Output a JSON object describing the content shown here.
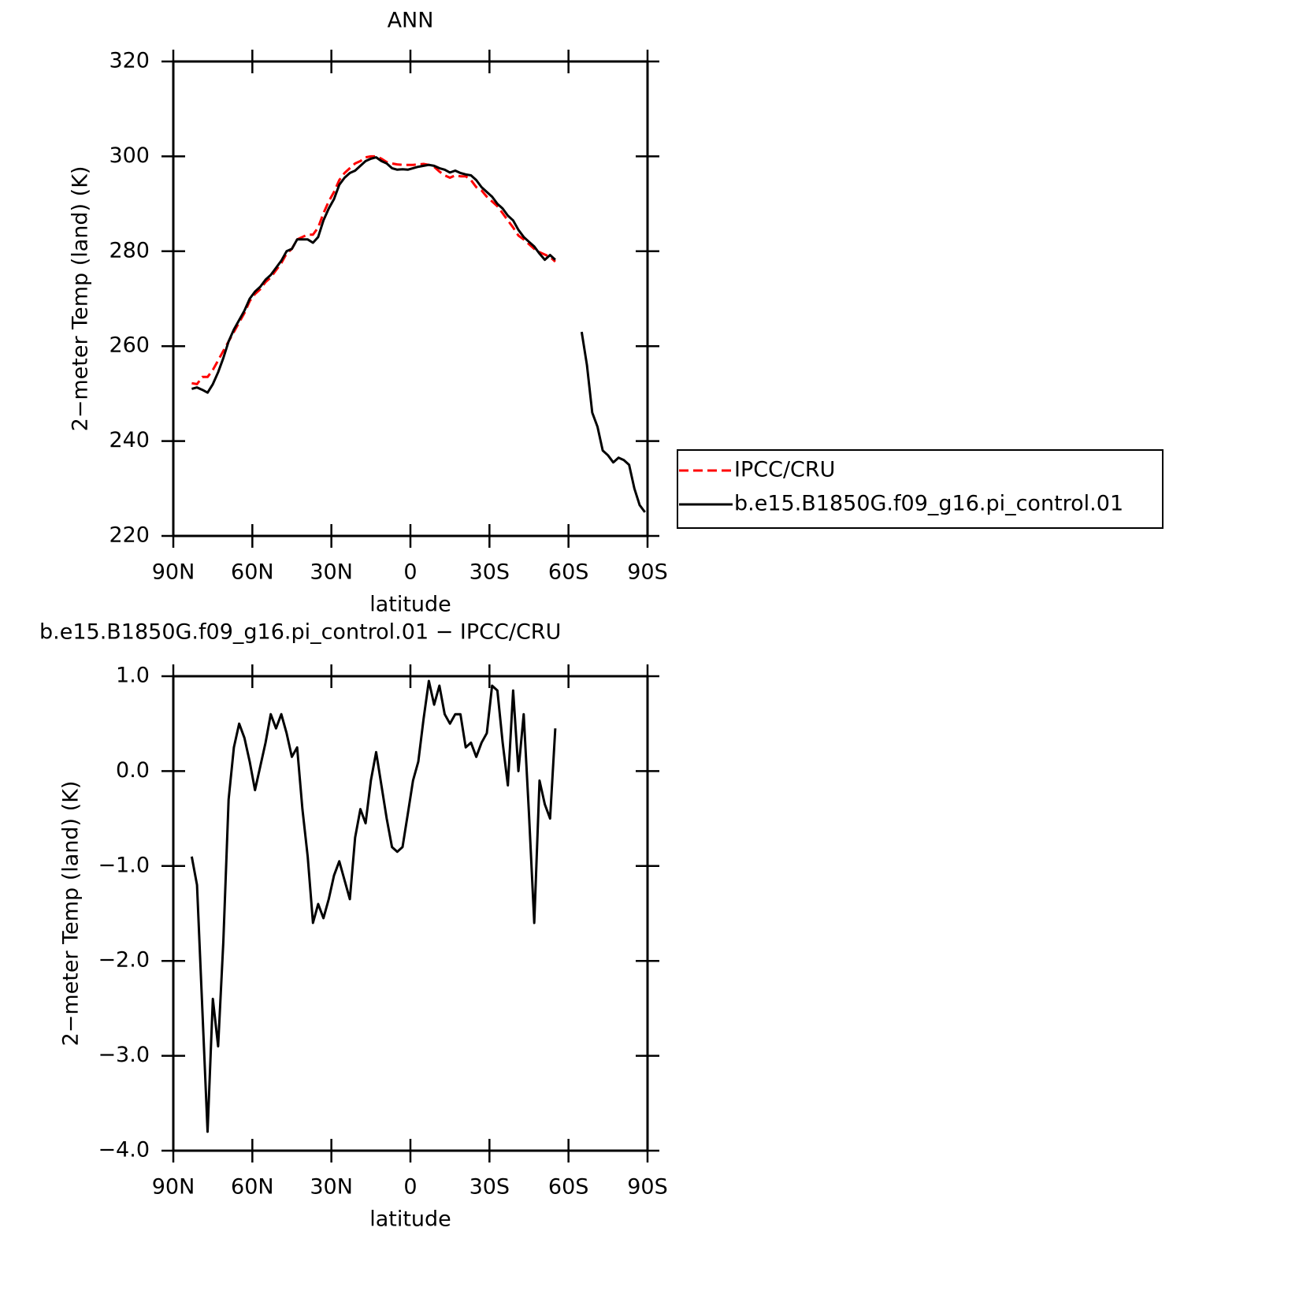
{
  "chart_data": [
    {
      "type": "line",
      "title": "ANN",
      "xlabel": "latitude",
      "ylabel": "2−meter Temp (land) (K)",
      "x": [
        83,
        81,
        79,
        77,
        75,
        73,
        71,
        69,
        67,
        65,
        63,
        61,
        59,
        57,
        55,
        53,
        51,
        49,
        47,
        45,
        43,
        41,
        39,
        37,
        35,
        33,
        31,
        29,
        27,
        25,
        23,
        21,
        19,
        17,
        15,
        13,
        11,
        9,
        7,
        5,
        3,
        1,
        -1,
        -3,
        -5,
        -7,
        -9,
        -11,
        -13,
        -15,
        -17,
        -19,
        -21,
        -23,
        -25,
        -27,
        -29,
        -31,
        -33,
        -35,
        -37,
        -39,
        -41,
        -43,
        -45,
        -47,
        -49,
        -51,
        -53,
        -55,
        -57,
        -59,
        -61,
        -63,
        -65,
        -67,
        -69,
        -71,
        -73,
        -75,
        -77,
        -79,
        -81,
        -83,
        -85,
        -87,
        -89
      ],
      "series": [
        {
          "name": "IPCC/CRU",
          "color": "#ff0000",
          "dashed": true,
          "values": [
            252.2,
            252,
            253.5,
            253.5,
            255,
            257,
            259,
            261,
            263,
            265,
            267,
            269.5,
            271,
            272,
            273.5,
            274.5,
            276,
            277.5,
            279.5,
            280.5,
            282.5,
            283,
            283.5,
            283.5,
            285,
            288,
            290.5,
            292.5,
            295,
            296.5,
            297.5,
            298.5,
            299,
            299.8,
            300,
            300,
            299.5,
            298.8,
            298.5,
            298.3,
            298.2,
            298.2,
            298.2,
            298.3,
            298.4,
            298.2,
            297.8,
            296.8,
            296,
            295.5,
            296,
            295.8,
            295.8,
            295,
            293.5,
            292.8,
            291.5,
            290.5,
            289.5,
            288,
            286.5,
            285,
            283.3,
            282.5,
            281.5,
            280.5,
            279.8,
            279.3,
            278.8,
            277.8,
            null,
            null,
            null,
            null,
            null,
            null,
            null,
            null,
            null,
            null,
            null,
            null,
            null,
            null,
            null,
            null,
            null
          ]
        },
        {
          "name": "b.e15.B1850G.f09_g16.pi_control.01",
          "color": "#000000",
          "dashed": false,
          "values": [
            251,
            251.3,
            250.8,
            250.2,
            252,
            254.5,
            257.5,
            261,
            263.5,
            265.5,
            267.5,
            270,
            271.5,
            272.5,
            274,
            275,
            276.5,
            278,
            280,
            280.5,
            282.5,
            282.5,
            282.5,
            281.8,
            283,
            286.5,
            289,
            291,
            294,
            295.5,
            296.5,
            297,
            298,
            299,
            299.5,
            299.8,
            299,
            298.5,
            297.5,
            297.2,
            297.3,
            297.2,
            297.5,
            297.8,
            298,
            298.2,
            298,
            297.5,
            297.2,
            296.6,
            297,
            296.5,
            296.2,
            296,
            295,
            293.5,
            292.5,
            291.5,
            290,
            289,
            287.5,
            286.5,
            284.5,
            283,
            282,
            281,
            279.5,
            278.2,
            279.2,
            278.2,
            null,
            null,
            null,
            null,
            263,
            256,
            246,
            243,
            238,
            237,
            235.5,
            236.5,
            236,
            235,
            230,
            226.5,
            225
          ]
        }
      ],
      "xlim": [
        90,
        -90
      ],
      "xticks": [
        {
          "value": 90,
          "label": "90N"
        },
        {
          "value": 60,
          "label": "60N"
        },
        {
          "value": 30,
          "label": "30N"
        },
        0,
        {
          "value": -30,
          "label": "30S"
        },
        {
          "value": -60,
          "label": "60S"
        },
        {
          "value": -90,
          "label": "90S"
        }
      ],
      "ylim": [
        220,
        320
      ],
      "yticks": [
        220,
        240,
        260,
        280,
        300,
        320
      ],
      "legend": "right"
    },
    {
      "type": "line",
      "title": "b.e15.B1850G.f09_g16.pi_control.01 − IPCC/CRU",
      "xlabel": "latitude",
      "ylabel": "2−meter Temp (land) (K)",
      "x": [
        83,
        81,
        79,
        77,
        75,
        73,
        71,
        69,
        67,
        65,
        63,
        61,
        59,
        57,
        55,
        53,
        51,
        49,
        47,
        45,
        43,
        41,
        39,
        37,
        35,
        33,
        31,
        29,
        27,
        25,
        23,
        21,
        19,
        17,
        15,
        13,
        11,
        9,
        7,
        5,
        3,
        1,
        -1,
        -3,
        -5,
        -7,
        -9,
        -11,
        -13,
        -15,
        -17,
        -19,
        -21,
        -23,
        -25,
        -27,
        -29,
        -31,
        -33,
        -35,
        -37,
        -39,
        -41,
        -43,
        -45,
        -47,
        -49,
        -51,
        -53,
        -55
      ],
      "series": [
        {
          "color": "#000000",
          "dashed": false,
          "values": [
            -0.9,
            -1.2,
            -2.5,
            -3.8,
            -2.4,
            -2.9,
            -1.8,
            -0.3,
            0.25,
            0.5,
            0.35,
            0.1,
            -0.2,
            0.05,
            0.3,
            0.6,
            0.45,
            0.6,
            0.4,
            0.15,
            0.25,
            -0.4,
            -0.9,
            -1.6,
            -1.4,
            -1.55,
            -1.35,
            -1.1,
            -0.95,
            -1.15,
            -1.35,
            -0.7,
            -0.4,
            -0.55,
            -0.1,
            0.2,
            -0.15,
            -0.5,
            -0.8,
            -0.85,
            -0.8,
            -0.45,
            -0.1,
            0.1,
            0.55,
            0.95,
            0.7,
            0.9,
            0.6,
            0.5,
            0.6,
            0.6,
            0.25,
            0.3,
            0.15,
            0.3,
            0.4,
            0.9,
            0.85,
            0.3,
            -0.15,
            0.85,
            0,
            0.6,
            -0.45,
            -1.6,
            -0.1,
            -0.35,
            -0.5,
            0.45
          ]
        }
      ],
      "xlim": [
        90,
        -90
      ],
      "xticks": [
        {
          "value": 90,
          "label": "90N"
        },
        {
          "value": 60,
          "label": "60N"
        },
        {
          "value": 30,
          "label": "30N"
        },
        0,
        {
          "value": -30,
          "label": "30S"
        },
        {
          "value": -60,
          "label": "60S"
        },
        {
          "value": -90,
          "label": "90S"
        }
      ],
      "ylim": [
        -4,
        1
      ],
      "yticks": [
        {
          "value": -4,
          "label": "−4.0"
        },
        {
          "value": -3,
          "label": "−3.0"
        },
        {
          "value": -2,
          "label": "−2.0"
        },
        {
          "value": -1,
          "label": "−1.0"
        },
        {
          "value": 0,
          "label": "0.0"
        },
        {
          "value": 1,
          "label": "1.0"
        }
      ]
    }
  ]
}
